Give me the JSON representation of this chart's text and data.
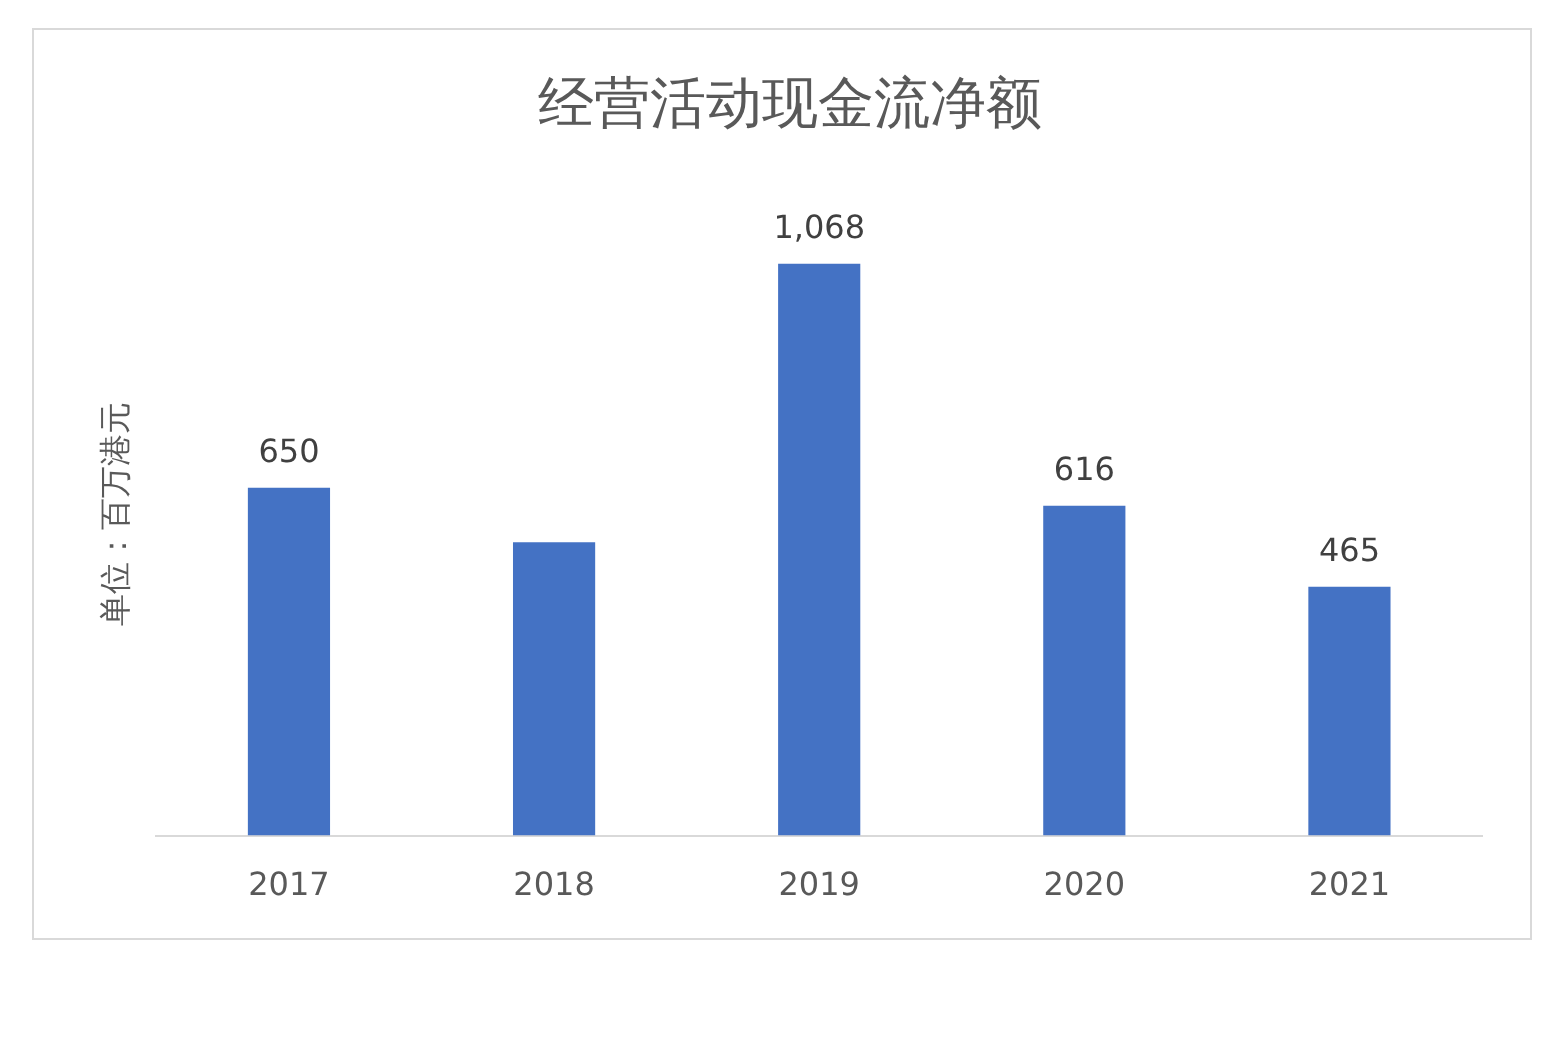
{
  "chart_data": {
    "type": "bar",
    "title": "经营活动现金流净额",
    "ylabel": "单位：百万港元",
    "categories": [
      "2017",
      "2018",
      "2019",
      "2020",
      "2021"
    ],
    "values": [
      650,
      548,
      1068,
      616,
      465
    ],
    "color": "#4472c4",
    "value_labels": [
      "650",
      null,
      "1,068",
      "616",
      "465"
    ]
  }
}
